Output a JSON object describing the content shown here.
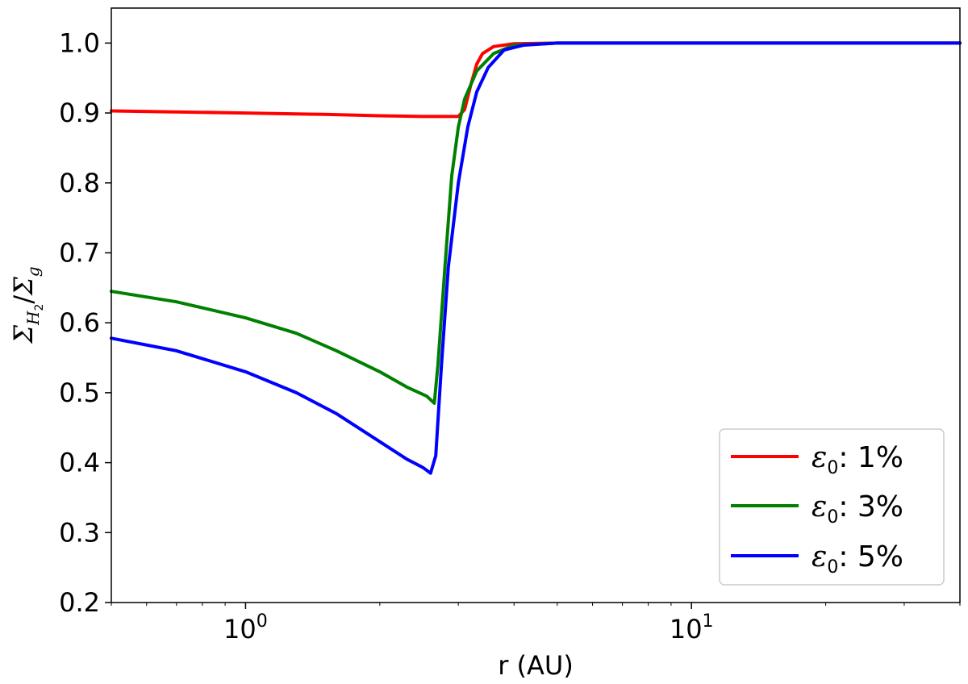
{
  "chart_data": {
    "type": "line",
    "xlabel": "r (AU)",
    "ylabel": {
      "sigma": "Σ",
      "sub": "H",
      "subsub": "2",
      "slash": "/",
      "sigma2": "Σ",
      "sub2": "g"
    },
    "xscale": "log",
    "xlim": [
      0.5,
      40
    ],
    "ylim": [
      0.2,
      1.05
    ],
    "x_ticks": [
      {
        "value": 1,
        "base": "10",
        "exp": "0"
      },
      {
        "value": 10,
        "base": "10",
        "exp": "1"
      }
    ],
    "y_ticks": [
      0.2,
      0.3,
      0.4,
      0.5,
      0.6,
      0.7,
      0.8,
      0.9,
      1.0
    ],
    "y_tick_labels": [
      "0.2",
      "0.3",
      "0.4",
      "0.5",
      "0.6",
      "0.7",
      "0.8",
      "0.9",
      "1.0"
    ],
    "grid": false,
    "legend_position": "lower-right",
    "series": [
      {
        "name": "ε0: 1%",
        "label": {
          "symbol": "ε",
          "sub": "0",
          "text": ": 1%"
        },
        "color": "#ff0000",
        "points": [
          [
            0.5,
            0.903
          ],
          [
            1.0,
            0.9
          ],
          [
            1.5,
            0.898
          ],
          [
            2.0,
            0.896
          ],
          [
            2.5,
            0.895
          ],
          [
            2.8,
            0.895
          ],
          [
            3.0,
            0.895
          ],
          [
            3.1,
            0.905
          ],
          [
            3.2,
            0.94
          ],
          [
            3.3,
            0.97
          ],
          [
            3.4,
            0.985
          ],
          [
            3.6,
            0.995
          ],
          [
            4.0,
            0.999
          ],
          [
            5.0,
            1.0
          ],
          [
            40,
            1.0
          ]
        ]
      },
      {
        "name": "ε0: 3%",
        "label": {
          "symbol": "ε",
          "sub": "0",
          "text": ": 3%"
        },
        "color": "#008000",
        "points": [
          [
            0.5,
            0.645
          ],
          [
            0.7,
            0.63
          ],
          [
            1.0,
            0.607
          ],
          [
            1.3,
            0.585
          ],
          [
            1.6,
            0.56
          ],
          [
            2.0,
            0.53
          ],
          [
            2.3,
            0.508
          ],
          [
            2.55,
            0.495
          ],
          [
            2.65,
            0.485
          ],
          [
            2.7,
            0.54
          ],
          [
            2.8,
            0.68
          ],
          [
            2.9,
            0.81
          ],
          [
            3.0,
            0.88
          ],
          [
            3.1,
            0.92
          ],
          [
            3.3,
            0.96
          ],
          [
            3.6,
            0.985
          ],
          [
            4.0,
            0.997
          ],
          [
            5.0,
            1.0
          ],
          [
            40,
            1.0
          ]
        ]
      },
      {
        "name": "ε0: 5%",
        "label": {
          "symbol": "ε",
          "sub": "0",
          "text": ": 5%"
        },
        "color": "#0000ff",
        "points": [
          [
            0.5,
            0.578
          ],
          [
            0.7,
            0.56
          ],
          [
            1.0,
            0.53
          ],
          [
            1.3,
            0.5
          ],
          [
            1.6,
            0.47
          ],
          [
            2.0,
            0.43
          ],
          [
            2.3,
            0.405
          ],
          [
            2.5,
            0.393
          ],
          [
            2.6,
            0.385
          ],
          [
            2.67,
            0.41
          ],
          [
            2.75,
            0.54
          ],
          [
            2.85,
            0.68
          ],
          [
            3.0,
            0.8
          ],
          [
            3.15,
            0.88
          ],
          [
            3.3,
            0.93
          ],
          [
            3.5,
            0.965
          ],
          [
            3.8,
            0.99
          ],
          [
            4.2,
            0.997
          ],
          [
            5.0,
            1.0
          ],
          [
            40,
            1.0
          ]
        ]
      }
    ]
  }
}
